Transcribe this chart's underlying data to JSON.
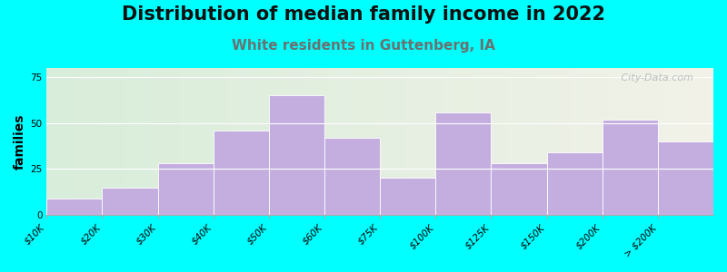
{
  "title": "Distribution of median family income in 2022",
  "subtitle": "White residents in Guttenberg, IA",
  "ylabel": "families",
  "edges": [
    "$10K",
    "$20K",
    "$30K",
    "$40K",
    "$50K",
    "$60K",
    "$75K",
    "$100K",
    "$125K",
    "$150K",
    "$200K",
    "> $200K"
  ],
  "values": [
    9,
    15,
    28,
    46,
    65,
    42,
    20,
    56,
    28,
    34,
    52,
    40
  ],
  "bar_color": "#c4aee0",
  "background_color": "#00ffff",
  "bg_left_color": "#d8edda",
  "bg_right_color": "#f2f2e8",
  "ylim": [
    0,
    80
  ],
  "yticks": [
    0,
    25,
    50,
    75
  ],
  "title_fontsize": 15,
  "subtitle_fontsize": 11,
  "subtitle_color": "#6b7070",
  "ylabel_fontsize": 10,
  "tick_fontsize": 7.5,
  "watermark": " City-Data.com"
}
